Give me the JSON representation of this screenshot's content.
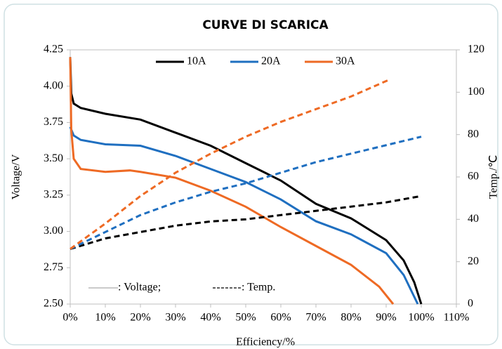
{
  "chart_data": {
    "type": "line",
    "title": "CURVE DI SCARICA",
    "x_label": "Efficiency/%",
    "y_label": "Voltage/V",
    "y2_label": "Temp./℃",
    "annotations": [
      ": Voltage;",
      ": Temp."
    ],
    "xlim": [
      0,
      110
    ],
    "xticks": [
      {
        "value": 0,
        "label": "0%"
      },
      {
        "value": 10,
        "label": "10%"
      },
      {
        "value": 20,
        "label": "20%"
      },
      {
        "value": 30,
        "label": "30%"
      },
      {
        "value": 40,
        "label": "40%"
      },
      {
        "value": 50,
        "label": "50%"
      },
      {
        "value": 60,
        "label": "60%"
      },
      {
        "value": 70,
        "label": "70%"
      },
      {
        "value": 80,
        "label": "80%"
      },
      {
        "value": 90,
        "label": "90%"
      },
      {
        "value": 100,
        "label": "100%"
      },
      {
        "value": 110,
        "label": "110%"
      }
    ],
    "ylim": [
      2.5,
      4.25
    ],
    "yticks": [
      {
        "value": 2.5,
        "label": "2.50"
      },
      {
        "value": 2.75,
        "label": "2.75"
      },
      {
        "value": 3,
        "label": "3.00"
      },
      {
        "value": 3.25,
        "label": "3.25"
      },
      {
        "value": 3.5,
        "label": "3.50"
      },
      {
        "value": 3.75,
        "label": "3.75"
      },
      {
        "value": 4,
        "label": "4.00"
      },
      {
        "value": 4.25,
        "label": "4.25"
      }
    ],
    "y2lim": [
      0,
      120
    ],
    "y2ticks": [
      0,
      20,
      40,
      60,
      80,
      100,
      120
    ],
    "series": [
      {
        "name": "10A",
        "color": "#000000",
        "x": [
          0,
          0.3,
          1,
          3,
          10,
          20,
          30,
          40,
          50,
          60,
          70,
          80,
          90,
          95,
          98,
          100
        ],
        "values": [
          4.2,
          3.95,
          3.88,
          3.85,
          3.81,
          3.77,
          3.68,
          3.59,
          3.47,
          3.35,
          3.19,
          3.09,
          2.94,
          2.8,
          2.65,
          2.5
        ]
      },
      {
        "name": "20A",
        "color": "#1f6fc0",
        "x": [
          0,
          1,
          3,
          10,
          20,
          30,
          40,
          50,
          60,
          70,
          80,
          90,
          95,
          99
        ],
        "values": [
          3.72,
          3.66,
          3.63,
          3.6,
          3.59,
          3.52,
          3.43,
          3.34,
          3.22,
          3.07,
          2.98,
          2.85,
          2.7,
          2.5
        ]
      },
      {
        "name": "30A",
        "color": "#ee6a24",
        "x": [
          0,
          0.3,
          1,
          3,
          10,
          17,
          20,
          30,
          40,
          50,
          60,
          70,
          80,
          88,
          92
        ],
        "values": [
          4.2,
          3.7,
          3.5,
          3.43,
          3.41,
          3.42,
          3.41,
          3.37,
          3.28,
          3.17,
          3.03,
          2.9,
          2.77,
          2.62,
          2.5
        ]
      },
      {
        "axis": "y2",
        "dashed": true,
        "color": "#000000",
        "x": [
          0,
          10,
          20,
          30,
          40,
          50,
          60,
          70,
          80,
          90,
          100
        ],
        "values": [
          26,
          31,
          34,
          37,
          39,
          40,
          42,
          44,
          46,
          48,
          51
        ]
      },
      {
        "axis": "y2",
        "dashed": true,
        "color": "#1f6fc0",
        "x": [
          0,
          10,
          20,
          30,
          40,
          50,
          60,
          70,
          80,
          90,
          100
        ],
        "values": [
          26,
          34,
          42,
          48,
          53,
          57,
          62,
          67,
          71,
          75,
          79
        ]
      },
      {
        "axis": "y2",
        "dashed": true,
        "color": "#ee6a24",
        "x": [
          0,
          10,
          20,
          30,
          40,
          50,
          60,
          70,
          80,
          91
        ],
        "values": [
          26,
          38,
          51,
          62,
          71,
          79,
          86,
          92,
          98,
          106
        ]
      }
    ]
  }
}
